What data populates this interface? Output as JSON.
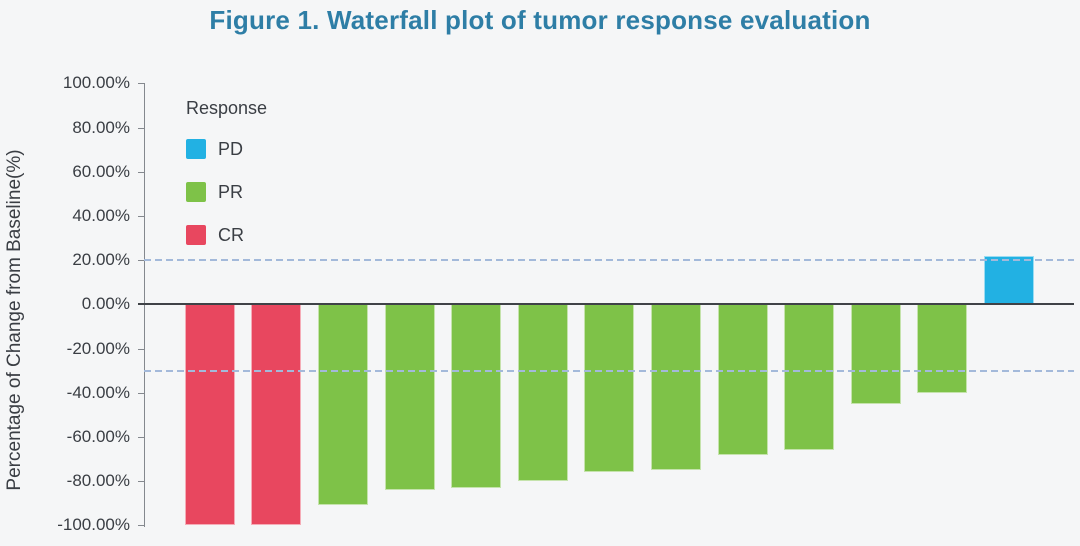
{
  "title": "Figure 1. Waterfall plot of tumor response evaluation",
  "chart_data": {
    "type": "bar",
    "subtype": "waterfall",
    "title": "Figure 1. Waterfall plot of tumor response evaluation",
    "xlabel": "",
    "ylabel": "Percentage of Change from Baseline(%)",
    "ylim": [
      -100,
      100
    ],
    "grid": false,
    "legend_position": "inside-top-left",
    "legend_title": "Response",
    "legend": [
      {
        "label": "PD",
        "color": "#22b1e3"
      },
      {
        "label": "PR",
        "color": "#7ec248"
      },
      {
        "label": "CR",
        "color": "#e8475f"
      }
    ],
    "yticks": [
      {
        "value": 100,
        "label": "100.00%"
      },
      {
        "value": 80,
        "label": "80.00%"
      },
      {
        "value": 60,
        "label": "60.00%"
      },
      {
        "value": 40,
        "label": "40.00%"
      },
      {
        "value": 20,
        "label": "20.00%"
      },
      {
        "value": 0,
        "label": "0.00%"
      },
      {
        "value": -20,
        "label": "-20.00%"
      },
      {
        "value": -40,
        "label": "-40.00%"
      },
      {
        "value": -60,
        "label": "-60.00%"
      },
      {
        "value": -80,
        "label": "-80.00%"
      },
      {
        "value": -100,
        "label": "-100.00%"
      }
    ],
    "reference_lines": [
      {
        "value": 20,
        "style": "dashed"
      },
      {
        "value": -30,
        "style": "dashed"
      }
    ],
    "bars": [
      {
        "response": "CR",
        "value": -100
      },
      {
        "response": "CR",
        "value": -100
      },
      {
        "response": "PR",
        "value": -91
      },
      {
        "response": "PR",
        "value": -84
      },
      {
        "response": "PR",
        "value": -83
      },
      {
        "response": "PR",
        "value": -80
      },
      {
        "response": "PR",
        "value": -76
      },
      {
        "response": "PR",
        "value": -75
      },
      {
        "response": "PR",
        "value": -68
      },
      {
        "response": "PR",
        "value": -66
      },
      {
        "response": "PR",
        "value": -45
      },
      {
        "response": "PR",
        "value": -40
      },
      {
        "response": "PD",
        "value": 22
      }
    ],
    "colors": {
      "PD": "#22b1e3",
      "PR": "#7ec248",
      "CR": "#e8475f",
      "title": "#2e7ea6",
      "zero_line": "#3f4247",
      "reference_line": "#a3b9da",
      "axis": "#84888e",
      "text": "#3a3e44",
      "background": "#f5f6f7"
    }
  }
}
